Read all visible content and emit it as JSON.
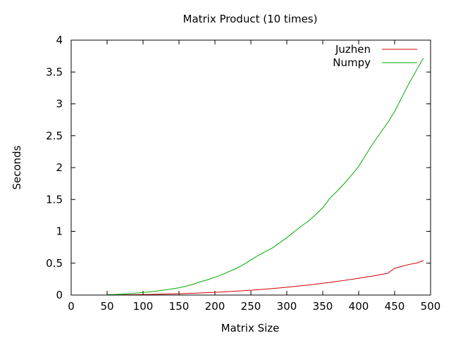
{
  "chart_data": {
    "type": "line",
    "title": "Matrix Product (10 times)",
    "xlabel": "Matrix Size",
    "ylabel": "Seconds",
    "xlim": [
      0,
      500
    ],
    "ylim": [
      0,
      4
    ],
    "xticks": [
      0,
      50,
      100,
      150,
      200,
      250,
      300,
      350,
      400,
      450,
      500
    ],
    "yticks": [
      0,
      0.5,
      1,
      1.5,
      2,
      2.5,
      3,
      3.5,
      4
    ],
    "ytick_labels": [
      "0",
      "0.5",
      "1",
      "1.5",
      "2",
      "2.5",
      "3",
      "3.5",
      "4"
    ],
    "grid": false,
    "legend_position": "top-right",
    "x": [
      50,
      60,
      70,
      80,
      90,
      100,
      110,
      120,
      130,
      140,
      150,
      160,
      170,
      180,
      190,
      200,
      210,
      220,
      230,
      240,
      250,
      260,
      270,
      280,
      290,
      300,
      310,
      320,
      330,
      340,
      350,
      360,
      370,
      380,
      390,
      400,
      410,
      420,
      430,
      440,
      450,
      460,
      470,
      480,
      490
    ],
    "series": [
      {
        "name": "Juzhen",
        "color": "#cc0000",
        "values": [
          0.001,
          0.002,
          0.003,
          0.004,
          0.006,
          0.008,
          0.01,
          0.012,
          0.015,
          0.018,
          0.021,
          0.025,
          0.029,
          0.033,
          0.038,
          0.043,
          0.049,
          0.055,
          0.062,
          0.069,
          0.076,
          0.084,
          0.093,
          0.102,
          0.112,
          0.123,
          0.134,
          0.146,
          0.158,
          0.171,
          0.185,
          0.199,
          0.214,
          0.23,
          0.246,
          0.264,
          0.282,
          0.3,
          0.32,
          0.34,
          0.42,
          0.45,
          0.48,
          0.5,
          0.54
        ]
      },
      {
        "name": "Numpy",
        "color": "#00aa00",
        "values": [
          0.005,
          0.008,
          0.014,
          0.022,
          0.03,
          0.04,
          0.05,
          0.065,
          0.08,
          0.095,
          0.115,
          0.14,
          0.17,
          0.21,
          0.24,
          0.28,
          0.32,
          0.37,
          0.42,
          0.48,
          0.55,
          0.62,
          0.68,
          0.74,
          0.82,
          0.9,
          0.99,
          1.08,
          1.16,
          1.26,
          1.37,
          1.52,
          1.63,
          1.75,
          1.88,
          2.02,
          2.2,
          2.38,
          2.54,
          2.7,
          2.88,
          3.1,
          3.32,
          3.52,
          3.72
        ]
      }
    ]
  }
}
